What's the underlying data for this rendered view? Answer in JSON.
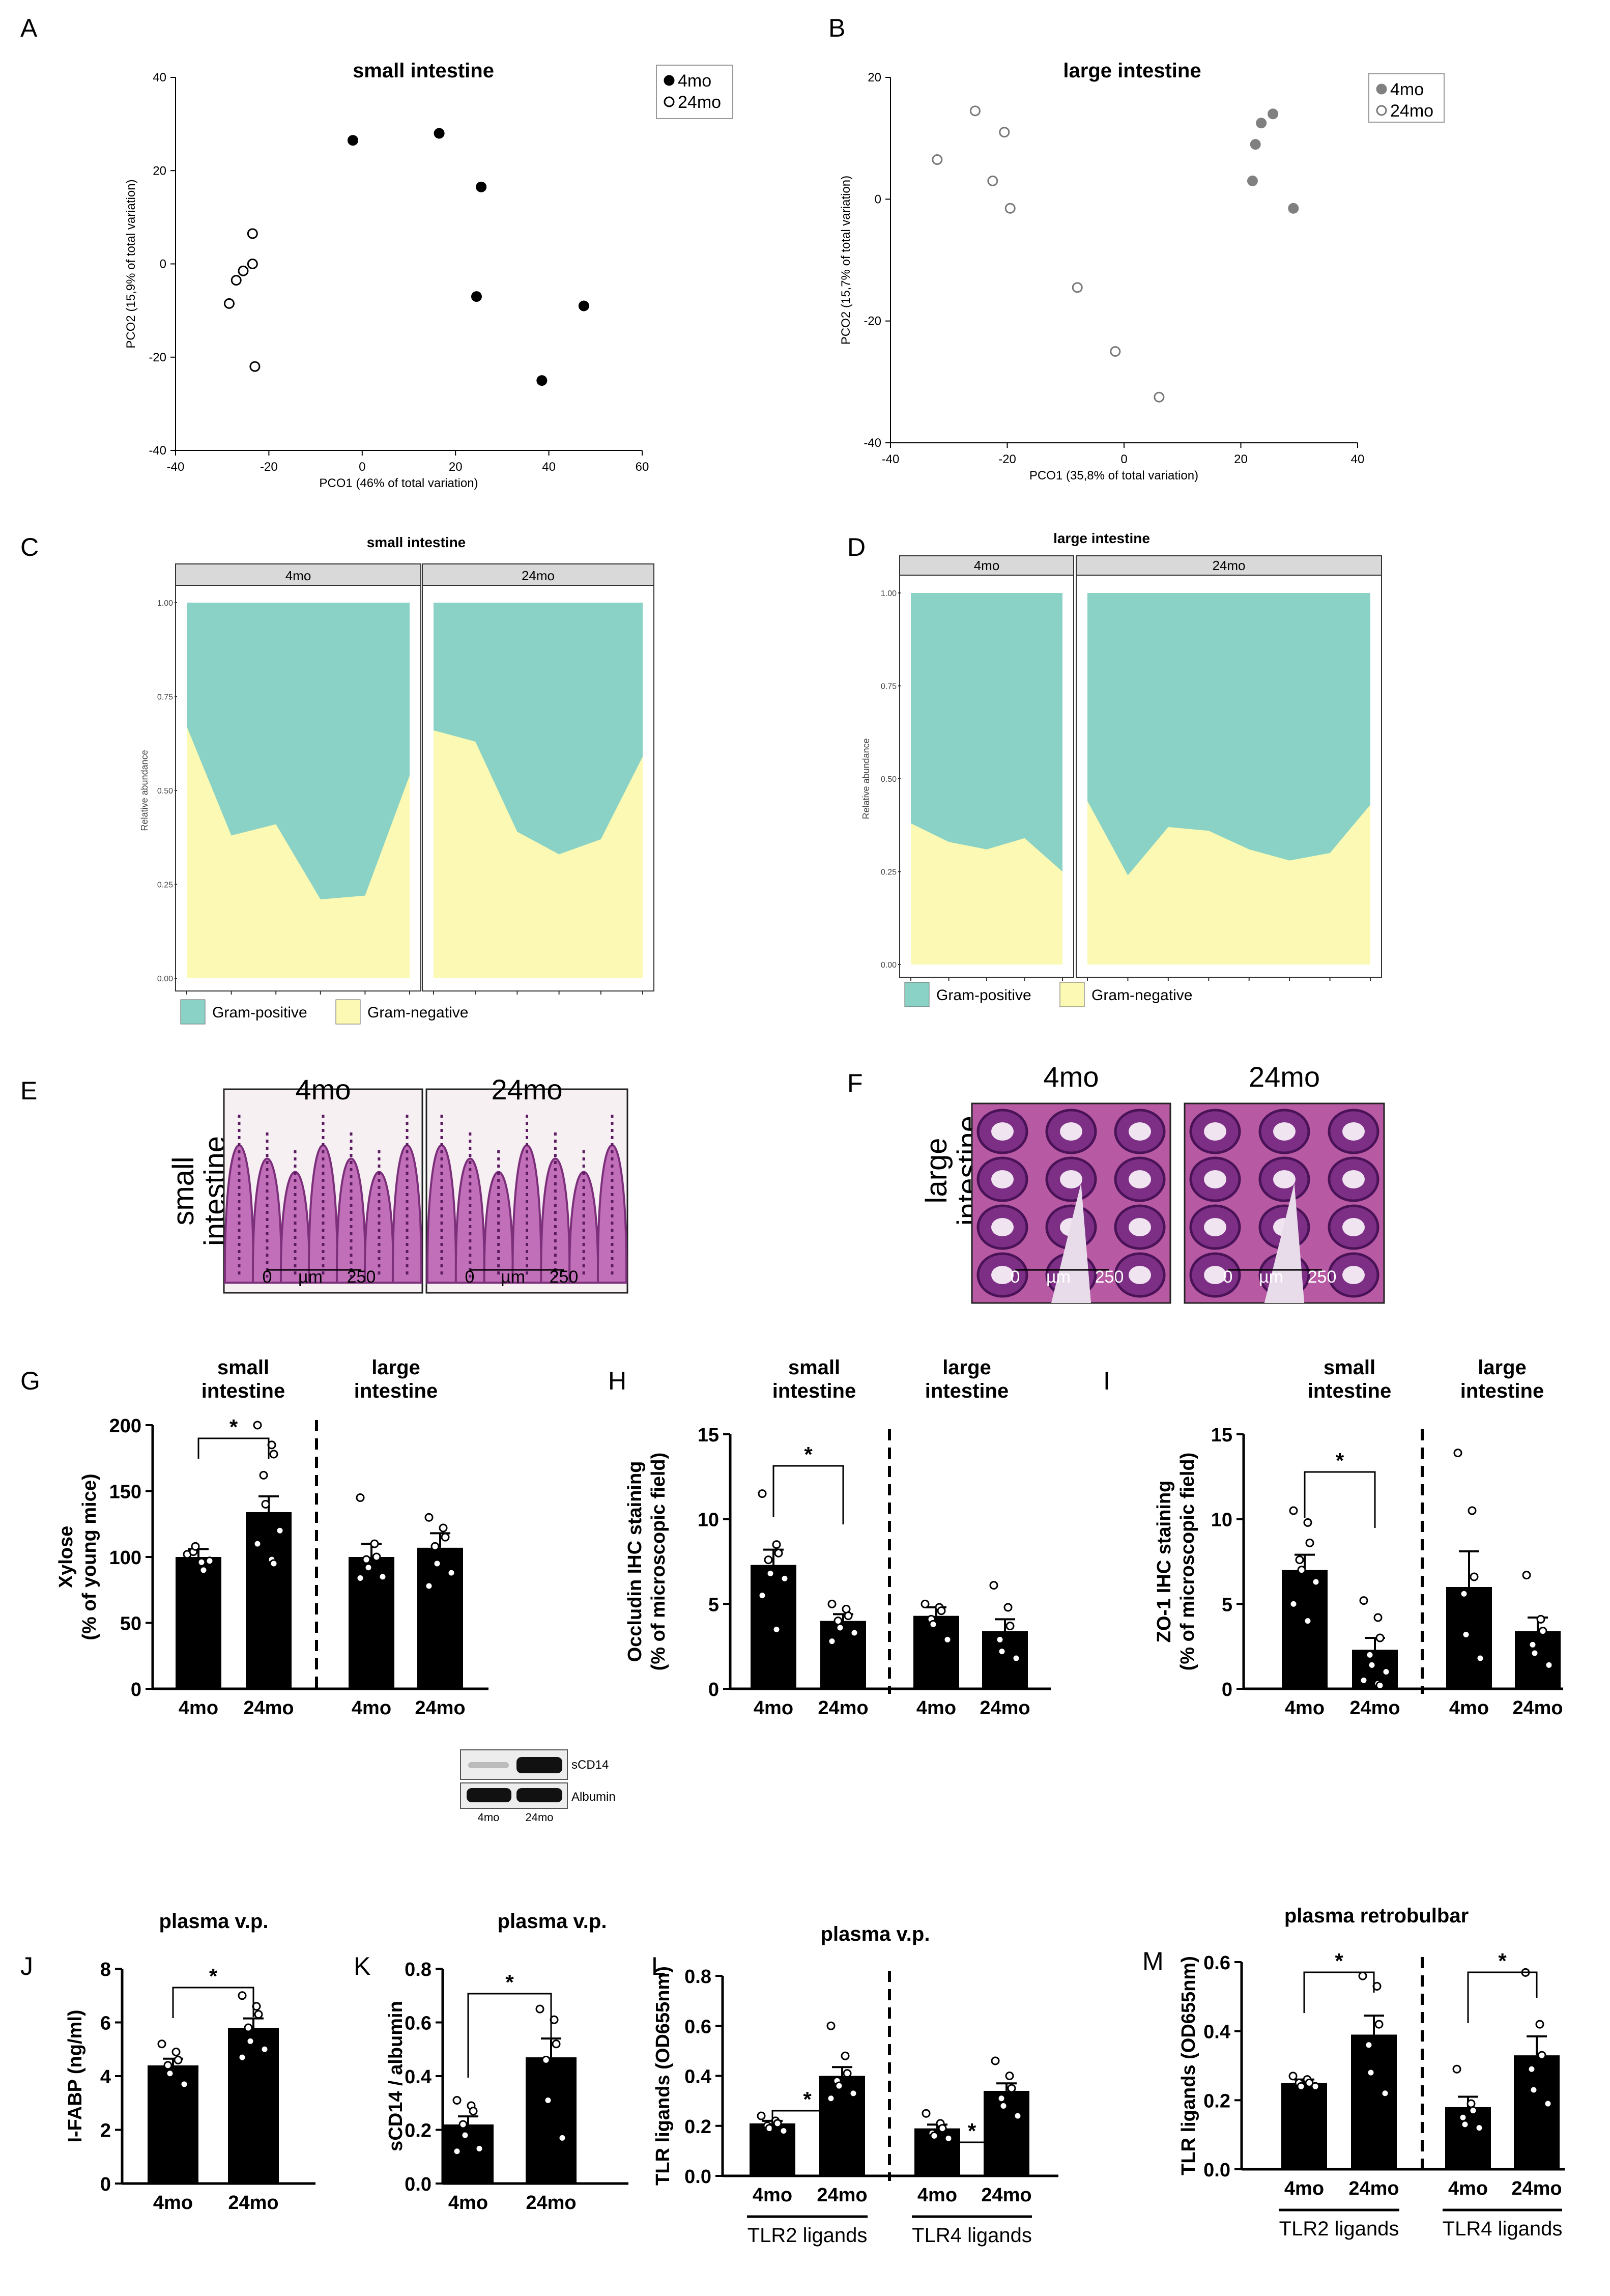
{
  "colors": {
    "teal": "#8ad2c5",
    "yellow": "#fbf9b3",
    "strip": "#d9d9d9",
    "grey_point": "#808080",
    "bar": "#000000"
  },
  "chart_data": [
    {
      "id": "A",
      "panel_letter": "A",
      "type": "scatter",
      "title": "small intestine",
      "xlabel": "PCO1 (46% of total variation)",
      "ylabel": "PCO2 (15,9% of total variation)",
      "xlim": [
        -40,
        60
      ],
      "ylim": [
        -40,
        40
      ],
      "xticks": [
        -40,
        -20,
        0,
        20,
        40,
        60
      ],
      "yticks": [
        -40,
        -20,
        0,
        20,
        40
      ],
      "legend": [
        "4mo",
        "24mo"
      ],
      "series": [
        {
          "name": "4mo",
          "style": "filled",
          "points": [
            [
              -2,
              26.5
            ],
            [
              16.5,
              28
            ],
            [
              25.5,
              16.5
            ],
            [
              24.5,
              -7
            ],
            [
              38.5,
              -25
            ],
            [
              47.5,
              -9
            ]
          ]
        },
        {
          "name": "24mo",
          "style": "open",
          "points": [
            [
              -23.5,
              6.5
            ],
            [
              -23.5,
              0
            ],
            [
              -25.5,
              -1.5
            ],
            [
              -27,
              -3.5
            ],
            [
              -28.5,
              -8.5
            ],
            [
              -23,
              -22
            ]
          ]
        }
      ]
    },
    {
      "id": "B",
      "panel_letter": "B",
      "type": "scatter",
      "title": "large intestine",
      "xlabel": "PCO1 (35,8% of total variation)",
      "ylabel": "PCO2 (15,7% of total variation)",
      "xlim": [
        -40,
        40
      ],
      "ylim": [
        -40,
        20
      ],
      "xticks": [
        -40,
        -20,
        0,
        20,
        40
      ],
      "yticks": [
        -40,
        -20,
        0,
        20
      ],
      "legend": [
        "4mo",
        "24mo"
      ],
      "series": [
        {
          "name": "4mo",
          "style": "grey",
          "points": [
            [
              25.5,
              14
            ],
            [
              23.5,
              12.5
            ],
            [
              22.5,
              9
            ],
            [
              22,
              3
            ],
            [
              29,
              -1.5
            ]
          ]
        },
        {
          "name": "24mo",
          "style": "open",
          "points": [
            [
              -25.5,
              14.5
            ],
            [
              -20.5,
              11
            ],
            [
              -32,
              6.5
            ],
            [
              -22.5,
              3
            ],
            [
              -19.5,
              -1.5
            ],
            [
              -8,
              -14.5
            ],
            [
              -1.5,
              -25
            ],
            [
              6,
              -32.5
            ]
          ]
        }
      ]
    },
    {
      "id": "C",
      "panel_letter": "C",
      "type": "area",
      "title": "small intestine",
      "ylabel": "Relative abundance",
      "ylim": [
        0,
        1
      ],
      "yticks": [
        "0.00",
        "0.25",
        "0.50",
        "0.75",
        "1.00"
      ],
      "facets": [
        {
          "label": "4mo",
          "gram_negative": [
            0.67,
            0.38,
            0.41,
            0.21,
            0.22,
            0.54
          ]
        },
        {
          "label": "24mo",
          "gram_negative": [
            0.66,
            0.63,
            0.39,
            0.33,
            0.37,
            0.59
          ]
        }
      ],
      "legend": [
        "Gram-positive",
        "Gram-negative"
      ]
    },
    {
      "id": "D",
      "panel_letter": "D",
      "type": "area",
      "title": "large intestine",
      "ylabel": "Relative abundance",
      "ylim": [
        0,
        1
      ],
      "yticks": [
        "0.00",
        "0.25",
        "0.50",
        "0.75",
        "1.00"
      ],
      "facets": [
        {
          "label": "4mo",
          "gram_negative": [
            0.38,
            0.33,
            0.31,
            0.34,
            0.25
          ]
        },
        {
          "label": "24mo",
          "gram_negative": [
            0.44,
            0.24,
            0.37,
            0.36,
            0.31,
            0.28,
            0.3,
            0.43
          ]
        }
      ],
      "legend": [
        "Gram-positive",
        "Gram-negative"
      ]
    },
    {
      "id": "G",
      "panel_letter": "G",
      "type": "bar",
      "ylabel_lines": [
        "Xylose",
        "(% of young mice)"
      ],
      "ylim": [
        0,
        200
      ],
      "yticks": [
        0,
        50,
        100,
        150,
        200
      ],
      "group_headers": [
        [
          "small",
          "intestine"
        ],
        [
          "large",
          "intestine"
        ]
      ],
      "categories": [
        "4mo",
        "24mo",
        "4mo",
        "24mo"
      ],
      "values": [
        100,
        134,
        100,
        107
      ],
      "sem": [
        6,
        12,
        10,
        11
      ],
      "points": [
        [
          102,
          96,
          90,
          104,
          108,
          97
        ],
        [
          200,
          185,
          178,
          162,
          140,
          120,
          110,
          98,
          95
        ],
        [
          145,
          110,
          100,
          98,
          92,
          85,
          84
        ],
        [
          130,
          122,
          115,
          108,
          95,
          88,
          78
        ]
      ],
      "sig": [
        {
          "from": 0,
          "to": 1,
          "label": "*"
        }
      ]
    },
    {
      "id": "H",
      "panel_letter": "H",
      "type": "bar",
      "ylabel_lines": [
        "Occludin IHC staining",
        "(% of microscopic field)"
      ],
      "ylim": [
        0,
        15
      ],
      "yticks": [
        0,
        5,
        10,
        15
      ],
      "group_headers": [
        [
          "small",
          "intestine"
        ],
        [
          "large",
          "intestine"
        ]
      ],
      "categories": [
        "4mo",
        "24mo",
        "4mo",
        "24mo"
      ],
      "values": [
        7.3,
        4.0,
        4.3,
        3.4
      ],
      "sem": [
        0.9,
        0.4,
        0.5,
        0.7
      ],
      "points": [
        [
          11.5,
          8.5,
          8.0,
          7.6,
          6.8,
          6.5,
          5.5,
          3.5
        ],
        [
          5.0,
          4.7,
          4.3,
          4.0,
          3.6,
          3.3,
          2.8
        ],
        [
          5.0,
          4.8,
          4.6,
          4.1,
          3.8,
          2.9
        ],
        [
          6.1,
          4.8,
          3.7,
          2.9,
          2.2,
          1.8
        ]
      ],
      "sig": [
        {
          "from": 0,
          "to": 1,
          "label": "*"
        }
      ]
    },
    {
      "id": "I",
      "panel_letter": "I",
      "type": "bar",
      "ylabel_lines": [
        "ZO-1 IHC staining",
        "(% of microscopic field)"
      ],
      "ylim": [
        0,
        15
      ],
      "yticks": [
        0,
        5,
        10,
        15
      ],
      "group_headers": [
        [
          "small",
          "intestine"
        ],
        [
          "large",
          "intestine"
        ]
      ],
      "categories": [
        "4mo",
        "24mo",
        "4mo",
        "24mo"
      ],
      "values": [
        7.0,
        2.3,
        6.0,
        3.4
      ],
      "sem": [
        0.9,
        0.7,
        2.1,
        0.8
      ],
      "points": [
        [
          10.5,
          9.8,
          8.6,
          7.6,
          7.0,
          6.3,
          5.0,
          4.0
        ],
        [
          5.2,
          4.2,
          3.0,
          2.0,
          1.4,
          1.0,
          0.5,
          0.3,
          0.2
        ],
        [
          13.9,
          10.5,
          6.6,
          5.6,
          3.2,
          1.8
        ],
        [
          6.7,
          4.1,
          3.4,
          2.6,
          2.1,
          1.4
        ]
      ],
      "sig": [
        {
          "from": 0,
          "to": 1,
          "label": "*"
        }
      ]
    },
    {
      "id": "J",
      "panel_letter": "J",
      "type": "bar",
      "title": "plasma v.p.",
      "ylabel_lines": [
        "I-FABP (ng/ml)"
      ],
      "ylim": [
        0,
        8
      ],
      "yticks": [
        0,
        2,
        4,
        6,
        8
      ],
      "categories": [
        "4mo",
        "24mo"
      ],
      "values": [
        4.4,
        5.8
      ],
      "sem": [
        0.25,
        0.35
      ],
      "points": [
        [
          5.2,
          4.9,
          4.6,
          4.4,
          4.1,
          3.7
        ],
        [
          7.0,
          6.6,
          6.3,
          5.8,
          5.3,
          5.0,
          4.7
        ]
      ],
      "sig": [
        {
          "from": 0,
          "to": 1,
          "label": "*"
        }
      ]
    },
    {
      "id": "K",
      "panel_letter": "K",
      "type": "bar",
      "title": "plasma v.p.",
      "ylabel_lines": [
        "sCD14 / albumin"
      ],
      "ylim": [
        0,
        0.8
      ],
      "yticks": [
        "0.0",
        "0.2",
        "0.4",
        "0.6",
        "0.8"
      ],
      "categories": [
        "4mo",
        "24mo"
      ],
      "values": [
        0.22,
        0.47
      ],
      "sem": [
        0.03,
        0.07
      ],
      "points": [
        [
          0.31,
          0.29,
          0.27,
          0.22,
          0.18,
          0.13,
          0.12
        ],
        [
          0.65,
          0.61,
          0.52,
          0.46,
          0.31,
          0.17
        ]
      ],
      "sig": [
        {
          "from": 0,
          "to": 1,
          "label": "*"
        }
      ]
    },
    {
      "id": "L",
      "panel_letter": "L",
      "type": "bar",
      "title": "plasma v.p.",
      "ylabel_lines": [
        "TLR ligands (OD655nm)"
      ],
      "ylim": [
        0,
        0.8
      ],
      "yticks": [
        "0.0",
        "0.2",
        "0.4",
        "0.6",
        "0.8"
      ],
      "categories": [
        "4mo",
        "24mo",
        "4mo",
        "24mo"
      ],
      "values": [
        0.21,
        0.4,
        0.19,
        0.34
      ],
      "sem": [
        0.01,
        0.035,
        0.015,
        0.03
      ],
      "points": [
        [
          0.24,
          0.22,
          0.21,
          0.2,
          0.19,
          0.18
        ],
        [
          0.6,
          0.48,
          0.41,
          0.38,
          0.36,
          0.33,
          0.31
        ],
        [
          0.25,
          0.21,
          0.19,
          0.17,
          0.16,
          0.15
        ],
        [
          0.46,
          0.4,
          0.35,
          0.31,
          0.28,
          0.24
        ]
      ],
      "sig": [
        {
          "from": 0,
          "to": 1,
          "label": "*"
        },
        {
          "from": 2,
          "to": 3,
          "label": "*"
        }
      ],
      "group_labels": [
        "TLR2 ligands",
        "TLR4 ligands"
      ]
    },
    {
      "id": "M",
      "panel_letter": "M",
      "type": "bar",
      "title": "plasma retrobulbar",
      "ylabel_lines": [
        "TLR ligands (OD655nm)"
      ],
      "ylim": [
        0,
        0.6
      ],
      "yticks": [
        "0.0",
        "0.2",
        "0.4",
        "0.6"
      ],
      "categories": [
        "4mo",
        "24mo",
        "4mo",
        "24mo"
      ],
      "values": [
        0.25,
        0.39,
        0.18,
        0.33
      ],
      "sem": [
        0.01,
        0.055,
        0.03,
        0.055
      ],
      "points": [
        [
          0.27,
          0.26,
          0.25,
          0.25,
          0.24,
          0.24
        ],
        [
          0.56,
          0.53,
          0.42,
          0.36,
          0.28,
          0.22
        ],
        [
          0.29,
          0.19,
          0.17,
          0.15,
          0.13,
          0.12
        ],
        [
          0.57,
          0.42,
          0.33,
          0.29,
          0.23,
          0.19
        ]
      ],
      "sig": [
        {
          "from": 0,
          "to": 1,
          "label": "*"
        },
        {
          "from": 2,
          "to": 3,
          "label": "*"
        }
      ],
      "group_labels": [
        "TLR2 ligands",
        "TLR4 ligands"
      ]
    }
  ],
  "histology": {
    "E": {
      "panel_letter": "E",
      "row_label": [
        "small",
        "intestine"
      ],
      "images": [
        {
          "title": "4mo",
          "scale": [
            "0",
            "µm",
            "250"
          ]
        },
        {
          "title": "24mo",
          "scale": [
            "0",
            "µm",
            "250"
          ]
        }
      ]
    },
    "F": {
      "panel_letter": "F",
      "row_label": [
        "large",
        "intestine"
      ],
      "images": [
        {
          "title": "4mo",
          "scale": [
            "0",
            "µm",
            "250"
          ]
        },
        {
          "title": "24mo",
          "scale": [
            "0",
            "µm",
            "250"
          ]
        }
      ]
    }
  },
  "western_blot": {
    "bands": [
      "sCD14",
      "Albumin"
    ],
    "lanes": [
      "4mo",
      "24mo"
    ]
  }
}
